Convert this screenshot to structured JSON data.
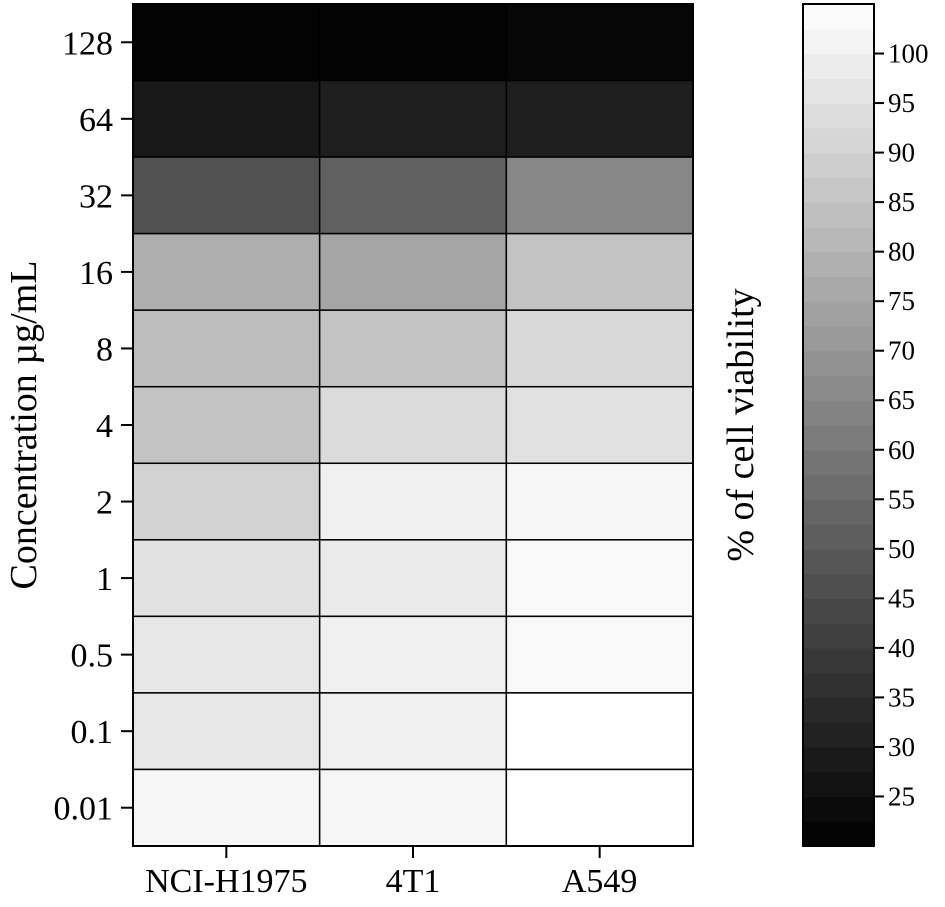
{
  "chart_data": {
    "type": "heatmap",
    "columns": [
      "NCI-H1975",
      "4T1",
      "A549"
    ],
    "rows": [
      "128",
      "64",
      "32",
      "16",
      "8",
      "4",
      "2",
      "1",
      "0.5",
      "0.1",
      "0.01"
    ],
    "values": [
      [
        21,
        21,
        22
      ],
      [
        28,
        30,
        30
      ],
      [
        47,
        52,
        65
      ],
      [
        78,
        75,
        85
      ],
      [
        83,
        85,
        92
      ],
      [
        85,
        93,
        95
      ],
      [
        90,
        100,
        102
      ],
      [
        95,
        98,
        103
      ],
      [
        97,
        100,
        103
      ],
      [
        97,
        100,
        105
      ],
      [
        102,
        102,
        105
      ]
    ],
    "ylabel": "Concentration µg/mL",
    "xlabel": "",
    "colorbar": {
      "label": "% of cell viability",
      "ticks": [
        25,
        30,
        35,
        40,
        45,
        50,
        55,
        60,
        65,
        70,
        75,
        80,
        85,
        90,
        95,
        100
      ],
      "range": [
        20,
        105
      ],
      "colors": [
        "#000000",
        "#ffffff"
      ]
    },
    "grid": true,
    "legend": "right"
  }
}
